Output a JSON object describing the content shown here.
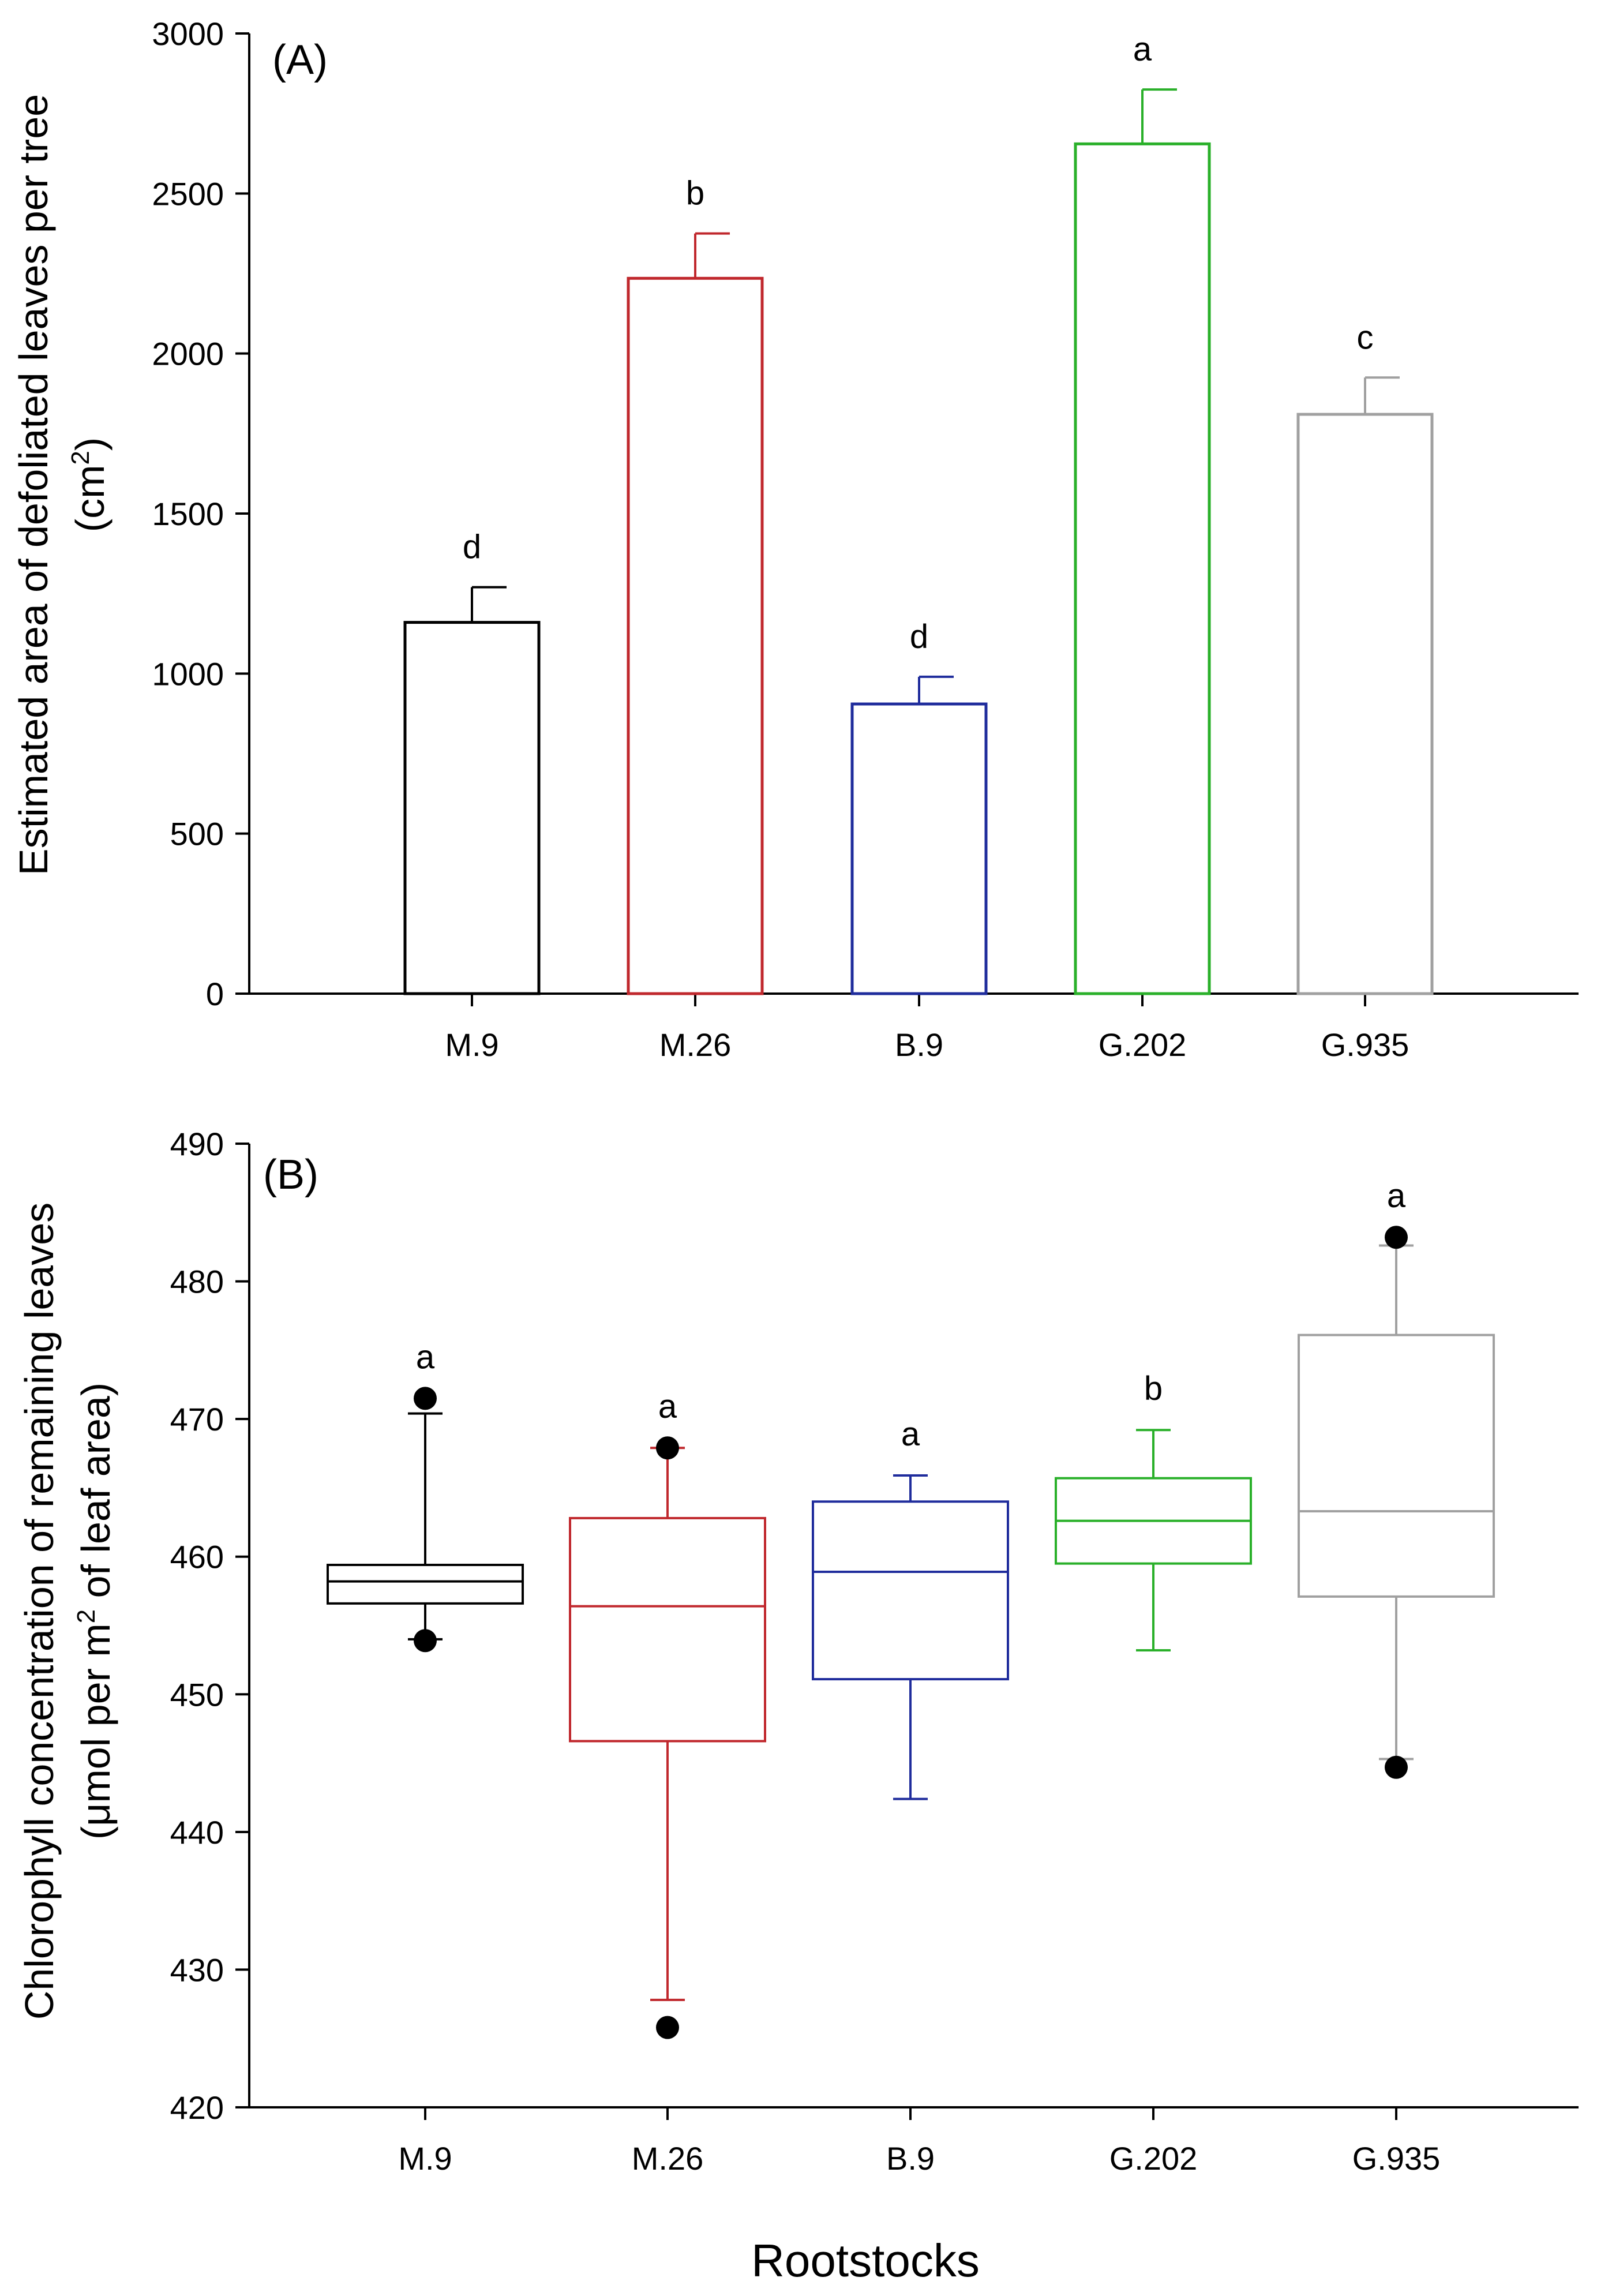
{
  "figure": {
    "xlabel": "Rootstocks"
  },
  "chart_data": [
    {
      "type": "bar",
      "panel_label": "(A)",
      "categories": [
        "M.9",
        "M.26",
        "B.9",
        "G.202",
        "G.935"
      ],
      "values": [
        1160,
        2235,
        905,
        2655,
        1810
      ],
      "errors": [
        110,
        140,
        85,
        170,
        115
      ],
      "significance": [
        "d",
        "b",
        "d",
        "a",
        "c"
      ],
      "colors": [
        "#000000",
        "#c0282d",
        "#1f2c9c",
        "#2ab02a",
        "#a0a0a0"
      ],
      "ylabel_line1": "Estimated area of defoliated leaves per tree",
      "ylabel_line2_prefix": "(cm",
      "ylabel_line2_sup": "2",
      "ylabel_line2_suffix": ")",
      "ylim": [
        0,
        3000
      ],
      "yticks": [
        "0",
        "500",
        "1000",
        "1500",
        "2000",
        "2500",
        "3000"
      ],
      "grid": false
    },
    {
      "type": "box",
      "panel_label": "(B)",
      "categories": [
        "M.9",
        "M.26",
        "B.9",
        "G.202",
        "G.935"
      ],
      "colors": [
        "#000000",
        "#c0282d",
        "#1f2c9c",
        "#2ab02a",
        "#a0a0a0"
      ],
      "significance": [
        "a",
        "a",
        "a",
        "b",
        "a"
      ],
      "boxes": [
        {
          "whisker_low": 454.0,
          "q1": 456.6,
          "median": 458.2,
          "q3": 459.4,
          "whisker_high": 470.4,
          "outliers": [
            471.5,
            453.9
          ]
        },
        {
          "whisker_low": 427.8,
          "q1": 446.6,
          "median": 456.4,
          "q3": 462.8,
          "whisker_high": 467.9,
          "outliers": [
            467.9,
            425.8
          ]
        },
        {
          "whisker_low": 442.4,
          "q1": 451.1,
          "median": 458.9,
          "q3": 464.0,
          "whisker_high": 465.9,
          "outliers": []
        },
        {
          "whisker_low": 453.2,
          "q1": 459.5,
          "median": 462.6,
          "q3": 465.7,
          "whisker_high": 469.2,
          "outliers": []
        },
        {
          "whisker_low": 445.3,
          "q1": 457.1,
          "median": 463.3,
          "q3": 476.1,
          "whisker_high": 482.6,
          "outliers": [
            483.2,
            444.7
          ]
        }
      ],
      "ylabel_line1": "Chlorophyll concentration of remaining leaves",
      "ylabel_line2_prefix": "(μmol per m",
      "ylabel_line2_sup": "2",
      "ylabel_line2_suffix": " of leaf area)",
      "ylim": [
        420,
        490
      ],
      "yticks": [
        "420",
        "430",
        "440",
        "450",
        "460",
        "470",
        "480",
        "490"
      ],
      "grid": false
    }
  ]
}
